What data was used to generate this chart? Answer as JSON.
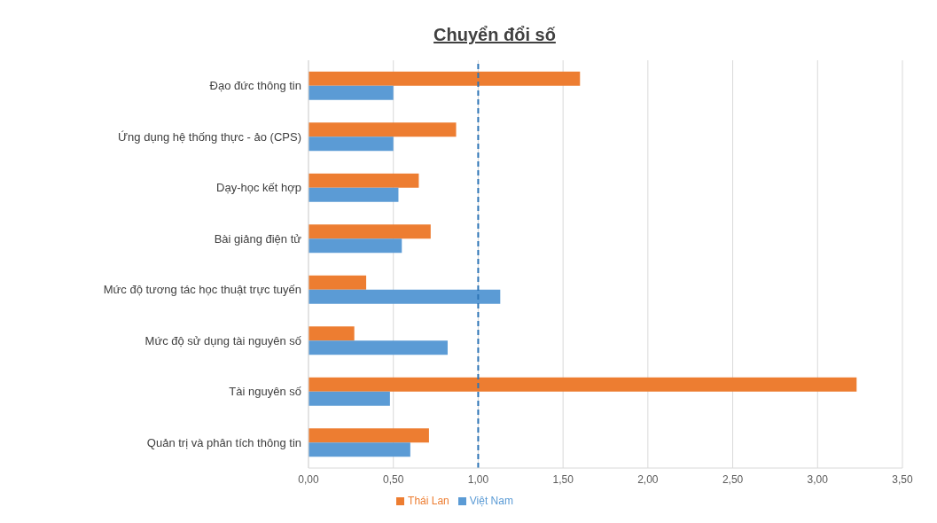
{
  "chart_data": {
    "type": "bar",
    "orientation": "horizontal",
    "title": "Chuyển đổi số",
    "categories": [
      "Đạo đức thông tin",
      "Ứng dụng hệ thống thực - ảo (CPS)",
      "Dạy-học kết hợp",
      "Bài giảng điện tử",
      "Mức độ tương tác học thuật trực tuyến",
      "Mức độ sử dụng tài nguyên số",
      "Tài nguyên số",
      "Quản trị và phân tích thông tin"
    ],
    "series": [
      {
        "name": "Thái Lan",
        "color": "#ed7d31",
        "values": [
          1.6,
          0.87,
          0.65,
          0.72,
          0.34,
          0.27,
          3.23,
          0.71
        ]
      },
      {
        "name": "Việt Nam",
        "color": "#5b9bd5",
        "values": [
          0.5,
          0.5,
          0.53,
          0.55,
          1.13,
          0.82,
          0.48,
          0.6
        ]
      }
    ],
    "xlim": [
      0,
      3.5
    ],
    "xticks": [
      {
        "value": 0,
        "label": "0,00"
      },
      {
        "value": 0.5,
        "label": "0,50"
      },
      {
        "value": 1,
        "label": "1,00"
      },
      {
        "value": 1.5,
        "label": "1,50"
      },
      {
        "value": 2,
        "label": "2,00"
      },
      {
        "value": 2.5,
        "label": "2,50"
      },
      {
        "value": 3,
        "label": "3,00"
      },
      {
        "value": 3.5,
        "label": "3,50"
      }
    ],
    "ref_lines": [
      {
        "axis": "x",
        "value": 1,
        "color": "#2e75b6",
        "line_style": "dashed"
      }
    ],
    "grid": "x",
    "legend": "bottom"
  }
}
